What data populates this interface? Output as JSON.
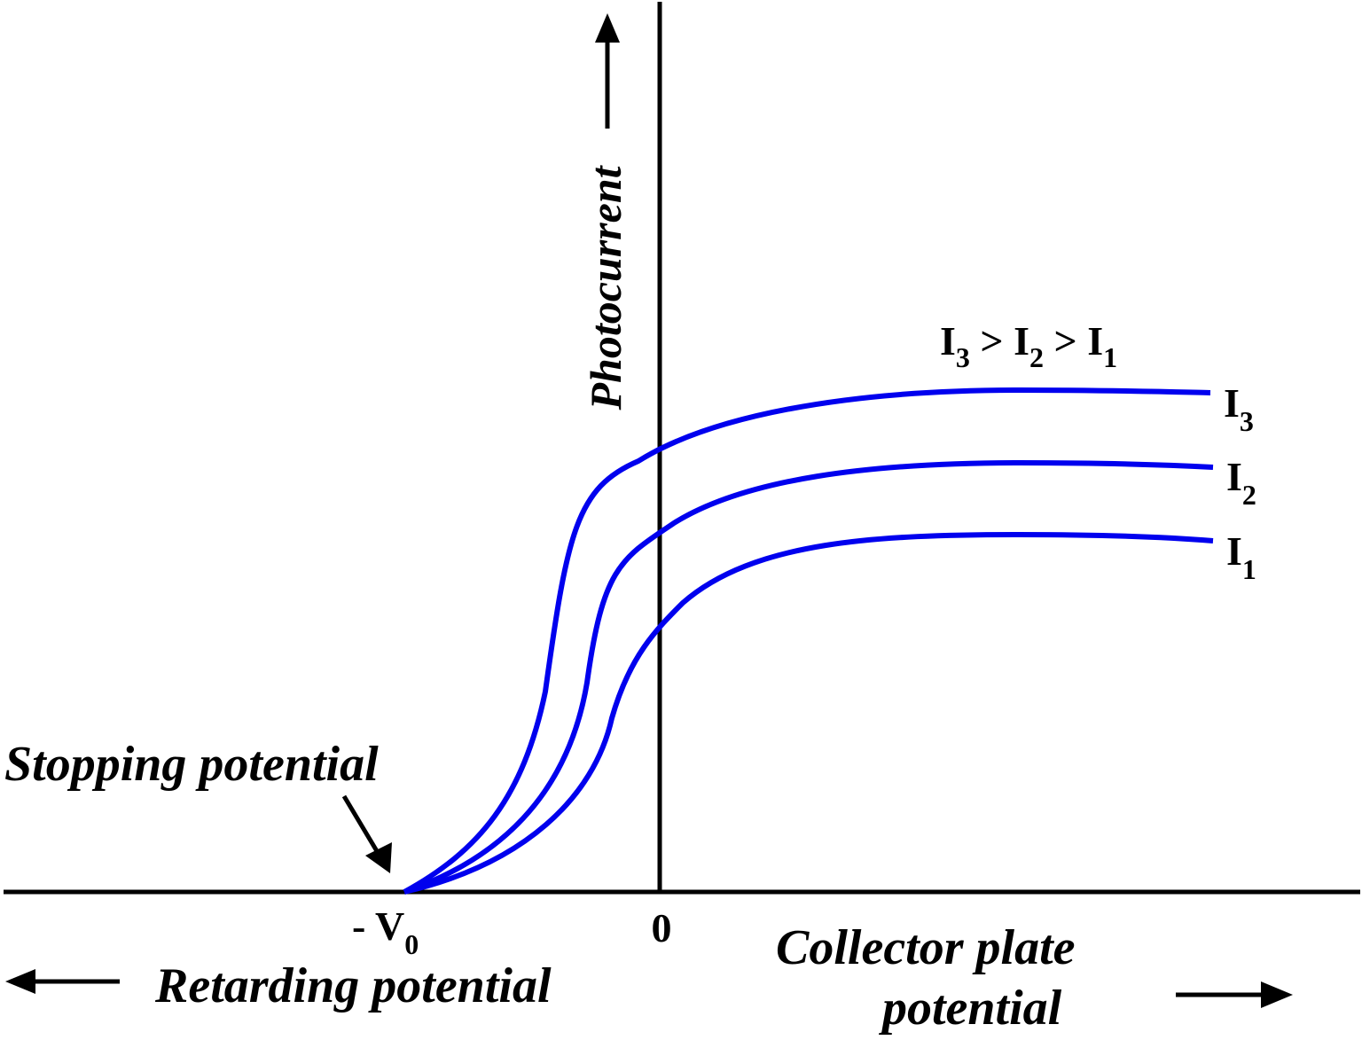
{
  "colors": {
    "axis": "#000000",
    "curve": "#0000ee",
    "background": "#ffffff"
  },
  "labels": {
    "y_axis": "Photocurrent",
    "stopping_potential": "Stopping potential",
    "minus_v0": {
      "prefix": "- V",
      "sub": "0"
    },
    "origin": "0",
    "retarding": "Retarding potential",
    "collector_line1": "Collector plate",
    "collector_line2": "potential",
    "relation": {
      "p1": "I",
      "s1": "3",
      "g1": " > ",
      "p2": "I",
      "s2": "2",
      "g2": " > ",
      "p3": "I",
      "s3": "1"
    }
  },
  "curves": [
    {
      "name": "I",
      "sub": "3",
      "rank": 3
    },
    {
      "name": "I",
      "sub": "2",
      "rank": 2
    },
    {
      "name": "I",
      "sub": "1",
      "rank": 1
    }
  ]
}
